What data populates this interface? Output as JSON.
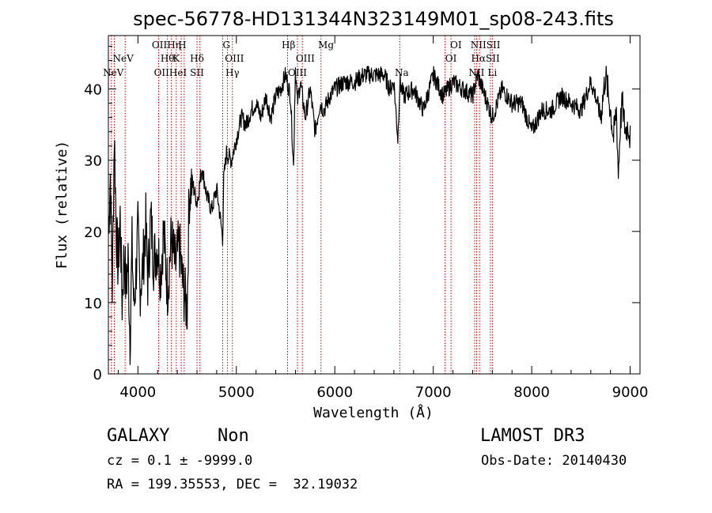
{
  "chart_data": {
    "type": "line",
    "title": "spec-56778-HD131344N323149M01_sp08-243.fits",
    "xlabel": "Wavelength (Å)",
    "ylabel": "Flux (relative)",
    "xlim": [
      3700,
      9100
    ],
    "ylim": [
      0,
      47.5
    ],
    "xticks": [
      4000,
      5000,
      6000,
      7000,
      8000,
      9000
    ],
    "yticks": [
      0,
      10,
      20,
      30,
      40
    ],
    "line_color": "#000000",
    "marker_color": "#cc0000",
    "spectrum": {
      "x": [
        3700,
        3720,
        3740,
        3760,
        3780,
        3800,
        3820,
        3840,
        3860,
        3880,
        3900,
        3920,
        3940,
        3960,
        3980,
        4000,
        4020,
        4050,
        4080,
        4100,
        4130,
        4160,
        4200,
        4230,
        4260,
        4300,
        4340,
        4380,
        4420,
        4460,
        4500,
        4520,
        4550,
        4600,
        4650,
        4700,
        4750,
        4800,
        4861,
        4870,
        4900,
        4950,
        5000,
        5050,
        5100,
        5150,
        5200,
        5250,
        5300,
        5350,
        5400,
        5450,
        5500,
        5550,
        5580,
        5600,
        5620,
        5650,
        5700,
        5750,
        5800,
        5850,
        5890,
        5950,
        6000,
        6100,
        6200,
        6300,
        6400,
        6500,
        6560,
        6600,
        6640,
        6660,
        6700,
        6800,
        6900,
        7000,
        7100,
        7200,
        7300,
        7400,
        7450,
        7500,
        7600,
        7700,
        7800,
        7900,
        8000,
        8100,
        8200,
        8300,
        8400,
        8500,
        8600,
        8650,
        8700,
        8750,
        8800,
        8830,
        8860,
        8880,
        8900,
        8920,
        8950,
        8980,
        9000
      ],
      "y": [
        20,
        28,
        12,
        34,
        20,
        15,
        22,
        10,
        17,
        12,
        16,
        5,
        18,
        9,
        14,
        20,
        12,
        15,
        21,
        13,
        22,
        16,
        18,
        14,
        20,
        12,
        19,
        15,
        18,
        12,
        9,
        25,
        27,
        24,
        29,
        25,
        23,
        26,
        19,
        27,
        31,
        30,
        33,
        36,
        35,
        37,
        38,
        36,
        39,
        36,
        39,
        40,
        42,
        39,
        29,
        43,
        38,
        41,
        36,
        40,
        34,
        38,
        37,
        39,
        40,
        41,
        41,
        42,
        42,
        42,
        40,
        41,
        33,
        41,
        39,
        40,
        37,
        42,
        39,
        41,
        40,
        39,
        42,
        40,
        36,
        40,
        38,
        38,
        34,
        37,
        37,
        39,
        38,
        37,
        41,
        39,
        36,
        42,
        37,
        33,
        37,
        28,
        35,
        38,
        34,
        35,
        33
      ]
    },
    "line_markers": [
      {
        "x": 3730
      },
      {
        "x": 3760
      },
      {
        "x": 3870
      },
      {
        "x": 4210
      },
      {
        "x": 4300
      },
      {
        "x": 4340
      },
      {
        "x": 4390
      },
      {
        "x": 4440
      },
      {
        "x": 4470
      },
      {
        "x": 4600
      },
      {
        "x": 4630
      },
      {
        "x": 4861
      },
      {
        "x": 4910
      },
      {
        "x": 4960
      },
      {
        "x": 5520
      },
      {
        "x": 5620
      },
      {
        "x": 5670
      },
      {
        "x": 5860
      },
      {
        "x": 6660
      },
      {
        "x": 7120
      },
      {
        "x": 7180
      },
      {
        "x": 7420
      },
      {
        "x": 7440
      },
      {
        "x": 7470
      },
      {
        "x": 7580
      },
      {
        "x": 7600
      }
    ],
    "line_labels": [
      {
        "text": "NeV",
        "x": 3850,
        "row": 1
      },
      {
        "text": "NeV",
        "x": 3750,
        "row": 2
      },
      {
        "text": "OIIHη",
        "x": 4290,
        "row": 0
      },
      {
        "text": "H",
        "x": 4450,
        "row": 0
      },
      {
        "text": "Hθ",
        "x": 4300,
        "row": 1
      },
      {
        "text": "K",
        "x": 4390,
        "row": 1
      },
      {
        "text": "Hδ",
        "x": 4600,
        "row": 1
      },
      {
        "text": "OIIHeI",
        "x": 4330,
        "row": 2
      },
      {
        "text": "SII",
        "x": 4600,
        "row": 2
      },
      {
        "text": "G",
        "x": 4900,
        "row": 0
      },
      {
        "text": "OIII",
        "x": 4980,
        "row": 1
      },
      {
        "text": "Hγ",
        "x": 4960,
        "row": 2
      },
      {
        "text": "Hβ",
        "x": 5530,
        "row": 0
      },
      {
        "text": "OIII",
        "x": 5700,
        "row": 1
      },
      {
        "text": "OIII",
        "x": 5620,
        "row": 2
      },
      {
        "text": "Mg",
        "x": 5910,
        "row": 0
      },
      {
        "text": "Na",
        "x": 6680,
        "row": 2
      },
      {
        "text": "OI",
        "x": 7230,
        "row": 0
      },
      {
        "text": "OI",
        "x": 7180,
        "row": 1
      },
      {
        "text": "NIISII",
        "x": 7530,
        "row": 0
      },
      {
        "text": "HαSII",
        "x": 7530,
        "row": 1
      },
      {
        "text": "NII",
        "x": 7440,
        "row": 2
      },
      {
        "text": "Li",
        "x": 7600,
        "row": 2
      }
    ]
  },
  "footer": {
    "object_class": "GALAXY",
    "subclass": "Non",
    "survey": "LAMOST DR3",
    "cz": "cz = 0.1 ± -9999.0",
    "obs_date": "Obs-Date: 20140430",
    "coords": "RA = 199.35553, DEC =  32.19032"
  }
}
